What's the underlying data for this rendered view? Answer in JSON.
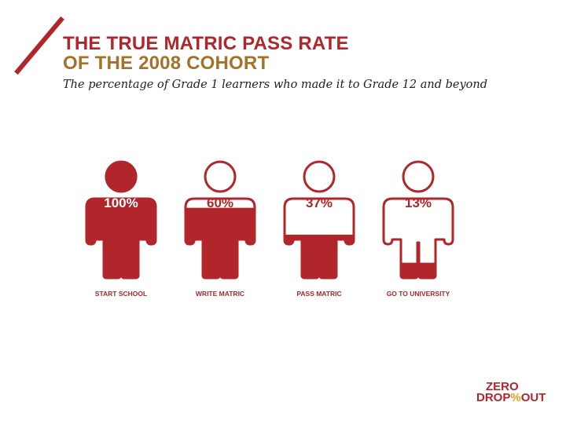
{
  "header": {
    "title_line1": "THE TRUE MATRIC PASS RATE",
    "title_line2": "OF THE 2008 COHORT",
    "subtitle": "The percentage of Grade 1 learners who made it to Grade 12 and beyond"
  },
  "colors": {
    "primary": "#b0262b",
    "accent": "#a4722a",
    "logo_accent": "#e0a020"
  },
  "chart_data": {
    "type": "pictograph",
    "categories": [
      "START SCHOOL",
      "WRITE MATRIC",
      "PASS MATRIC",
      "GO TO UNIVERSITY"
    ],
    "values": [
      100,
      60,
      37,
      13
    ],
    "value_labels": [
      "100%",
      "60%",
      "37%",
      "13%"
    ],
    "unit": "%"
  },
  "logo": {
    "line1": "ZERO",
    "line2_left": "DROP",
    "mark": "%",
    "line2_right": "OUT"
  }
}
